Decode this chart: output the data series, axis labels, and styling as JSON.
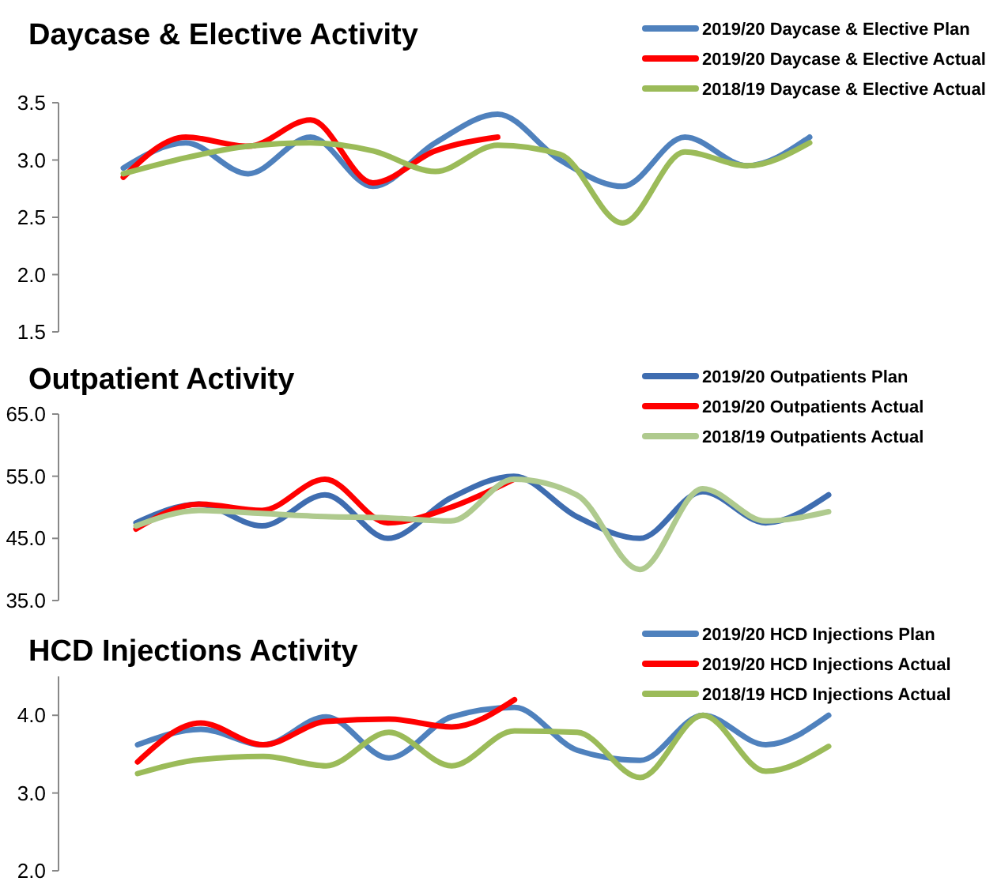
{
  "chart_data": [
    {
      "type": "line",
      "title": "Daycase & Elective Activity",
      "categories": [
        null,
        null,
        null,
        null,
        null,
        null,
        null,
        null,
        null,
        null,
        null,
        null
      ],
      "ylim": [
        1.5,
        3.5
      ],
      "yticks": [
        1.5,
        {
          "value": 2,
          "label": "2.0"
        },
        2.5,
        {
          "value": 3,
          "label": "3.0"
        },
        3.5
      ],
      "tick_labels": "y",
      "legend": "top right",
      "grid": false,
      "marker": "none",
      "line_style": "solid",
      "series": [
        {
          "name": "2019/20 Daycase & Elective Plan",
          "color": "#4f81bd",
          "values": [
            2.93,
            3.15,
            2.88,
            3.2,
            2.77,
            3.15,
            3.4,
            3.0,
            2.77,
            3.2,
            2.95,
            3.2
          ]
        },
        {
          "name": "2019/20 Daycase & Elective Actual",
          "color": "#ff0000",
          "values": [
            2.85,
            3.2,
            3.12,
            3.35,
            2.8,
            3.08,
            3.2,
            null,
            null,
            null,
            null,
            null
          ]
        },
        {
          "name": "2018/19 Daycase & Elective Actual",
          "color": "#9bbb59",
          "values": [
            2.88,
            3.02,
            3.12,
            3.15,
            3.08,
            2.9,
            3.13,
            3.05,
            2.45,
            3.07,
            2.95,
            3.15
          ]
        }
      ]
    },
    {
      "type": "line",
      "title": "Outpatient Activity",
      "categories": [
        null,
        null,
        null,
        null,
        null,
        null,
        null,
        null,
        null,
        null,
        null,
        null
      ],
      "ylim": [
        35,
        65
      ],
      "yticks": [
        {
          "value": 35,
          "label": "35.0"
        },
        {
          "value": 45,
          "label": "45.0"
        },
        {
          "value": 55,
          "label": "55.0"
        },
        {
          "value": 65,
          "label": "65.0"
        }
      ],
      "tick_labels": "y",
      "legend": "top right",
      "grid": false,
      "marker": "none",
      "line_style": "solid",
      "series": [
        {
          "name": "2019/20 Outpatients Plan",
          "color": "#3f6db0",
          "values": [
            47.5,
            50.5,
            47,
            52,
            45,
            51.5,
            55,
            48.5,
            45,
            52.5,
            47.5,
            52
          ]
        },
        {
          "name": "2019/20 Outpatients Actual",
          "color": "#ff0000",
          "values": [
            46.5,
            50.5,
            49.5,
            54.5,
            47.5,
            50,
            54.5,
            null,
            null,
            null,
            null,
            null
          ]
        },
        {
          "name": "2018/19 Outpatients Actual",
          "color": "#afca8e",
          "values": [
            47,
            49.5,
            49,
            48.5,
            48.3,
            47.8,
            54.5,
            52,
            40,
            53,
            47.8,
            49.3
          ]
        }
      ]
    },
    {
      "type": "line",
      "title": "HCD Injections Activity",
      "categories": [
        null,
        null,
        null,
        null,
        null,
        null,
        null,
        null,
        null,
        null,
        null,
        null
      ],
      "ylim": [
        2.0,
        4.5
      ],
      "yticks": [
        {
          "value": 2,
          "label": "2.0"
        },
        {
          "value": 3,
          "label": "3.0"
        },
        {
          "value": 4,
          "label": "4.0"
        }
      ],
      "tick_labels": "y",
      "legend": "top right",
      "grid": false,
      "marker": "none",
      "line_style": "solid",
      "series": [
        {
          "name": "2019/20 HCD Injections Plan",
          "color": "#4f81bd",
          "values": [
            3.62,
            3.82,
            3.62,
            3.98,
            3.45,
            3.98,
            4.1,
            3.55,
            3.42,
            4.0,
            3.62,
            4.0
          ]
        },
        {
          "name": "2019/20 HCD Injections Actual",
          "color": "#ff0000",
          "values": [
            3.4,
            3.9,
            3.62,
            3.92,
            3.95,
            3.85,
            4.2,
            null,
            null,
            null,
            null,
            null
          ]
        },
        {
          "name": "2018/19 HCD Injections Actual",
          "color": "#9bbb59",
          "values": [
            3.25,
            3.43,
            3.47,
            3.35,
            3.78,
            3.35,
            3.8,
            3.78,
            3.2,
            4.0,
            3.28,
            3.6
          ]
        }
      ]
    }
  ]
}
